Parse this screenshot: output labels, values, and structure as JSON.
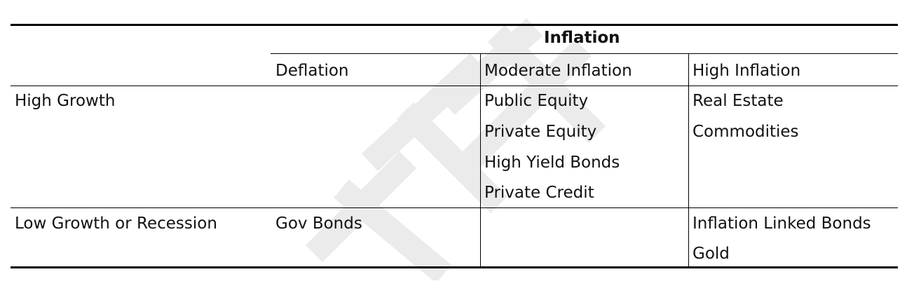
{
  "table": {
    "group_header": "Inflation",
    "column_headers": [
      "Deflation",
      "Moderate Inflation",
      "High Inflation"
    ],
    "rows": [
      {
        "label": "High Growth",
        "deflation": [],
        "moderate_inflation": [
          "Public Equity",
          "Private Equity",
          "High Yield Bonds",
          "Private Credit"
        ],
        "high_inflation": [
          "Real Estate",
          "Commodities"
        ]
      },
      {
        "label": "Low Growth or Recession",
        "deflation": [
          "Gov Bonds"
        ],
        "moderate_inflation": [],
        "high_inflation": [
          "Inflation Linked Bonds",
          "Gold"
        ]
      }
    ]
  }
}
